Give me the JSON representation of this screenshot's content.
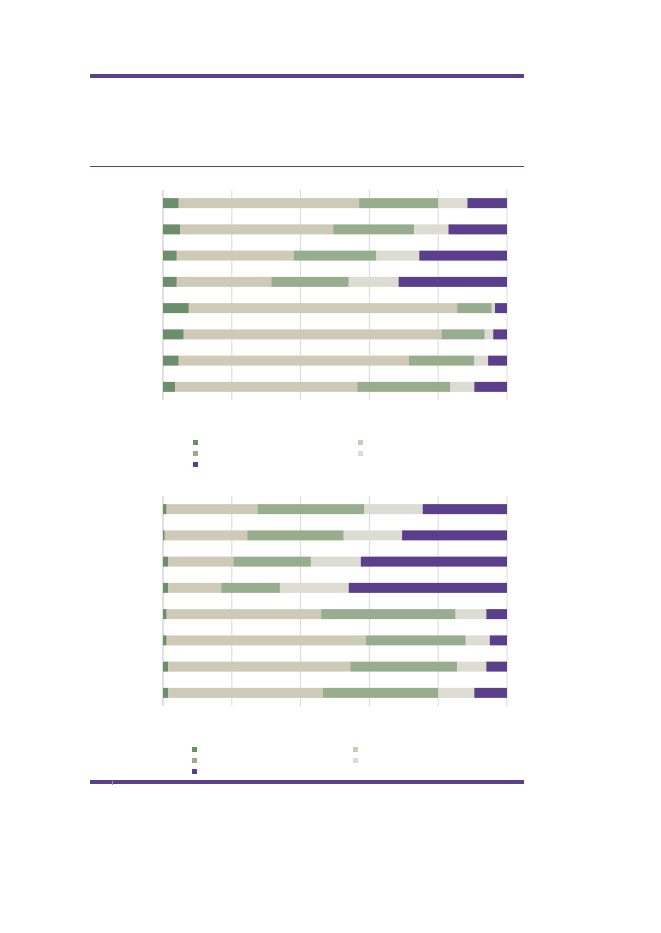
{
  "colors": {
    "accent": "#5b3f8c",
    "gridline": "#d9d9d9",
    "axis": "#bfbfbf"
  },
  "legend": {
    "items": [
      {
        "label": "",
        "color": "#6b8f6b"
      },
      {
        "label": "",
        "color": "#97ad8e"
      },
      {
        "label": "",
        "color": "#5b3f8c"
      },
      {
        "label": "",
        "color": "#cfc9b8"
      },
      {
        "label": "",
        "color": "#dddcd2"
      }
    ]
  },
  "chart_data": [
    {
      "type": "bar",
      "orientation": "horizontal",
      "stacked": true,
      "title": "",
      "xlabel": "",
      "ylabel": "",
      "xlim": [
        0,
        100
      ],
      "grid": true,
      "legend_position": "bottom",
      "categories": [
        "",
        "",
        "",
        "",
        "",
        "",
        "",
        ""
      ],
      "series": [
        {
          "color": "#6b8f6b",
          "values": [
            4.5,
            5,
            4,
            4,
            7.5,
            6,
            4.5,
            3.5
          ]
        },
        {
          "color": "#cfc9b8",
          "values": [
            52.5,
            44.5,
            34,
            27.5,
            78,
            75,
            67,
            53
          ]
        },
        {
          "color": "#97ad8e",
          "values": [
            23,
            23.5,
            24,
            22.5,
            10,
            12.5,
            19,
            27
          ]
        },
        {
          "color": "#dddcd2",
          "values": [
            8.5,
            10,
            12.5,
            14.5,
            1,
            2.5,
            4,
            7
          ]
        },
        {
          "color": "#5b3f8c",
          "values": [
            11.5,
            17,
            25.5,
            31.5,
            3.5,
            4,
            5.5,
            9.5
          ]
        }
      ]
    },
    {
      "type": "bar",
      "orientation": "horizontal",
      "stacked": true,
      "title": "",
      "xlabel": "",
      "ylabel": "",
      "xlim": [
        0,
        100
      ],
      "grid": true,
      "legend_position": "bottom",
      "categories": [
        "",
        "",
        "",
        "",
        "",
        "",
        "",
        ""
      ],
      "series": [
        {
          "color": "#6b8f6b",
          "values": [
            1,
            0.5,
            1.5,
            1.5,
            1,
            1,
            1.5,
            1.5
          ]
        },
        {
          "color": "#cfc9b8",
          "values": [
            26.5,
            24,
            19,
            15.5,
            45,
            58,
            53,
            45
          ]
        },
        {
          "color": "#97ad8e",
          "values": [
            31,
            28,
            22.5,
            17,
            39,
            29,
            31,
            33.5
          ]
        },
        {
          "color": "#dddcd2",
          "values": [
            17,
            17,
            14.5,
            20,
            9,
            7,
            8.5,
            10.5
          ]
        },
        {
          "color": "#5b3f8c",
          "values": [
            24.5,
            30.5,
            42.5,
            46,
            6,
            5,
            6,
            9.5
          ]
        }
      ]
    }
  ]
}
